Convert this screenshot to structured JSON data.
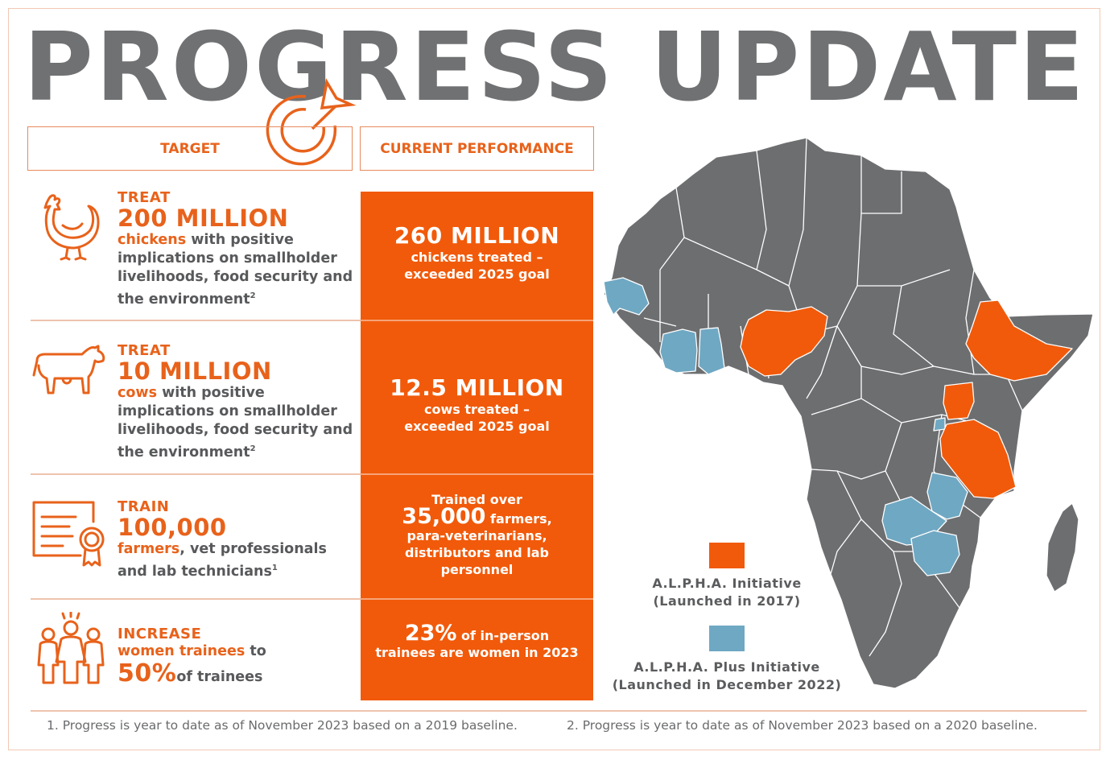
{
  "title": "PROGRESS UPDATE",
  "headers": {
    "target": "TARGET",
    "performance": "CURRENT PERFORMANCE"
  },
  "colors": {
    "accent": "#f15a0a",
    "gray": "#707173",
    "blue": "#6fa8c3",
    "map_gray": "#6d6e70"
  },
  "rows": [
    {
      "icon": "chicken-icon",
      "verb": "TREAT",
      "amount": "200 MILLION",
      "highlight": "chickens",
      "rest": " with positive implications on smallholder livelihoods, food security and the environment",
      "footnote": "2",
      "perf_number": "260 MILLION",
      "perf_text": "chickens treated – exceeded 2025 goal"
    },
    {
      "icon": "cow-icon",
      "verb": "TREAT",
      "amount": "10 MILLION",
      "highlight": "cows",
      "rest": " with positive implications on smallholder livelihoods, food security and the environment",
      "footnote": "2",
      "perf_number": "12.5 MILLION",
      "perf_text": "cows treated – exceeded 2025 goal"
    },
    {
      "icon": "certificate-icon",
      "verb": "TRAIN",
      "amount": "100,000",
      "highlight": "farmers",
      "rest": ", vet professionals and lab technicians",
      "footnote": "1",
      "perf_prefix": "Trained over",
      "perf_number": "35,000",
      "perf_suffix": " farmers,",
      "perf_text": "para-veterinarians, distributors and lab personnel"
    },
    {
      "icon": "women-group-icon",
      "verb": "INCREASE",
      "highlight": "women trainees",
      "rest": " to",
      "amount": "50%",
      "tail": "of trainees",
      "perf_number": "23%",
      "perf_suffix": " of in-person",
      "perf_text": "trainees are women in 2023"
    }
  ],
  "legend": [
    {
      "label_1": "A.L.P.H.A. Initiative",
      "label_2": "(Launched in 2017)",
      "color": "#f15a0a"
    },
    {
      "label_1": "A.L.P.H.A. Plus Initiative",
      "label_2": "(Launched in December 2022)",
      "color": "#6fa8c3"
    }
  ],
  "footnotes": [
    "1. Progress is year to date as of November 2023 based on a 2019 baseline.",
    "2. Progress is year to date as of November 2023 based on a 2020 baseline."
  ]
}
